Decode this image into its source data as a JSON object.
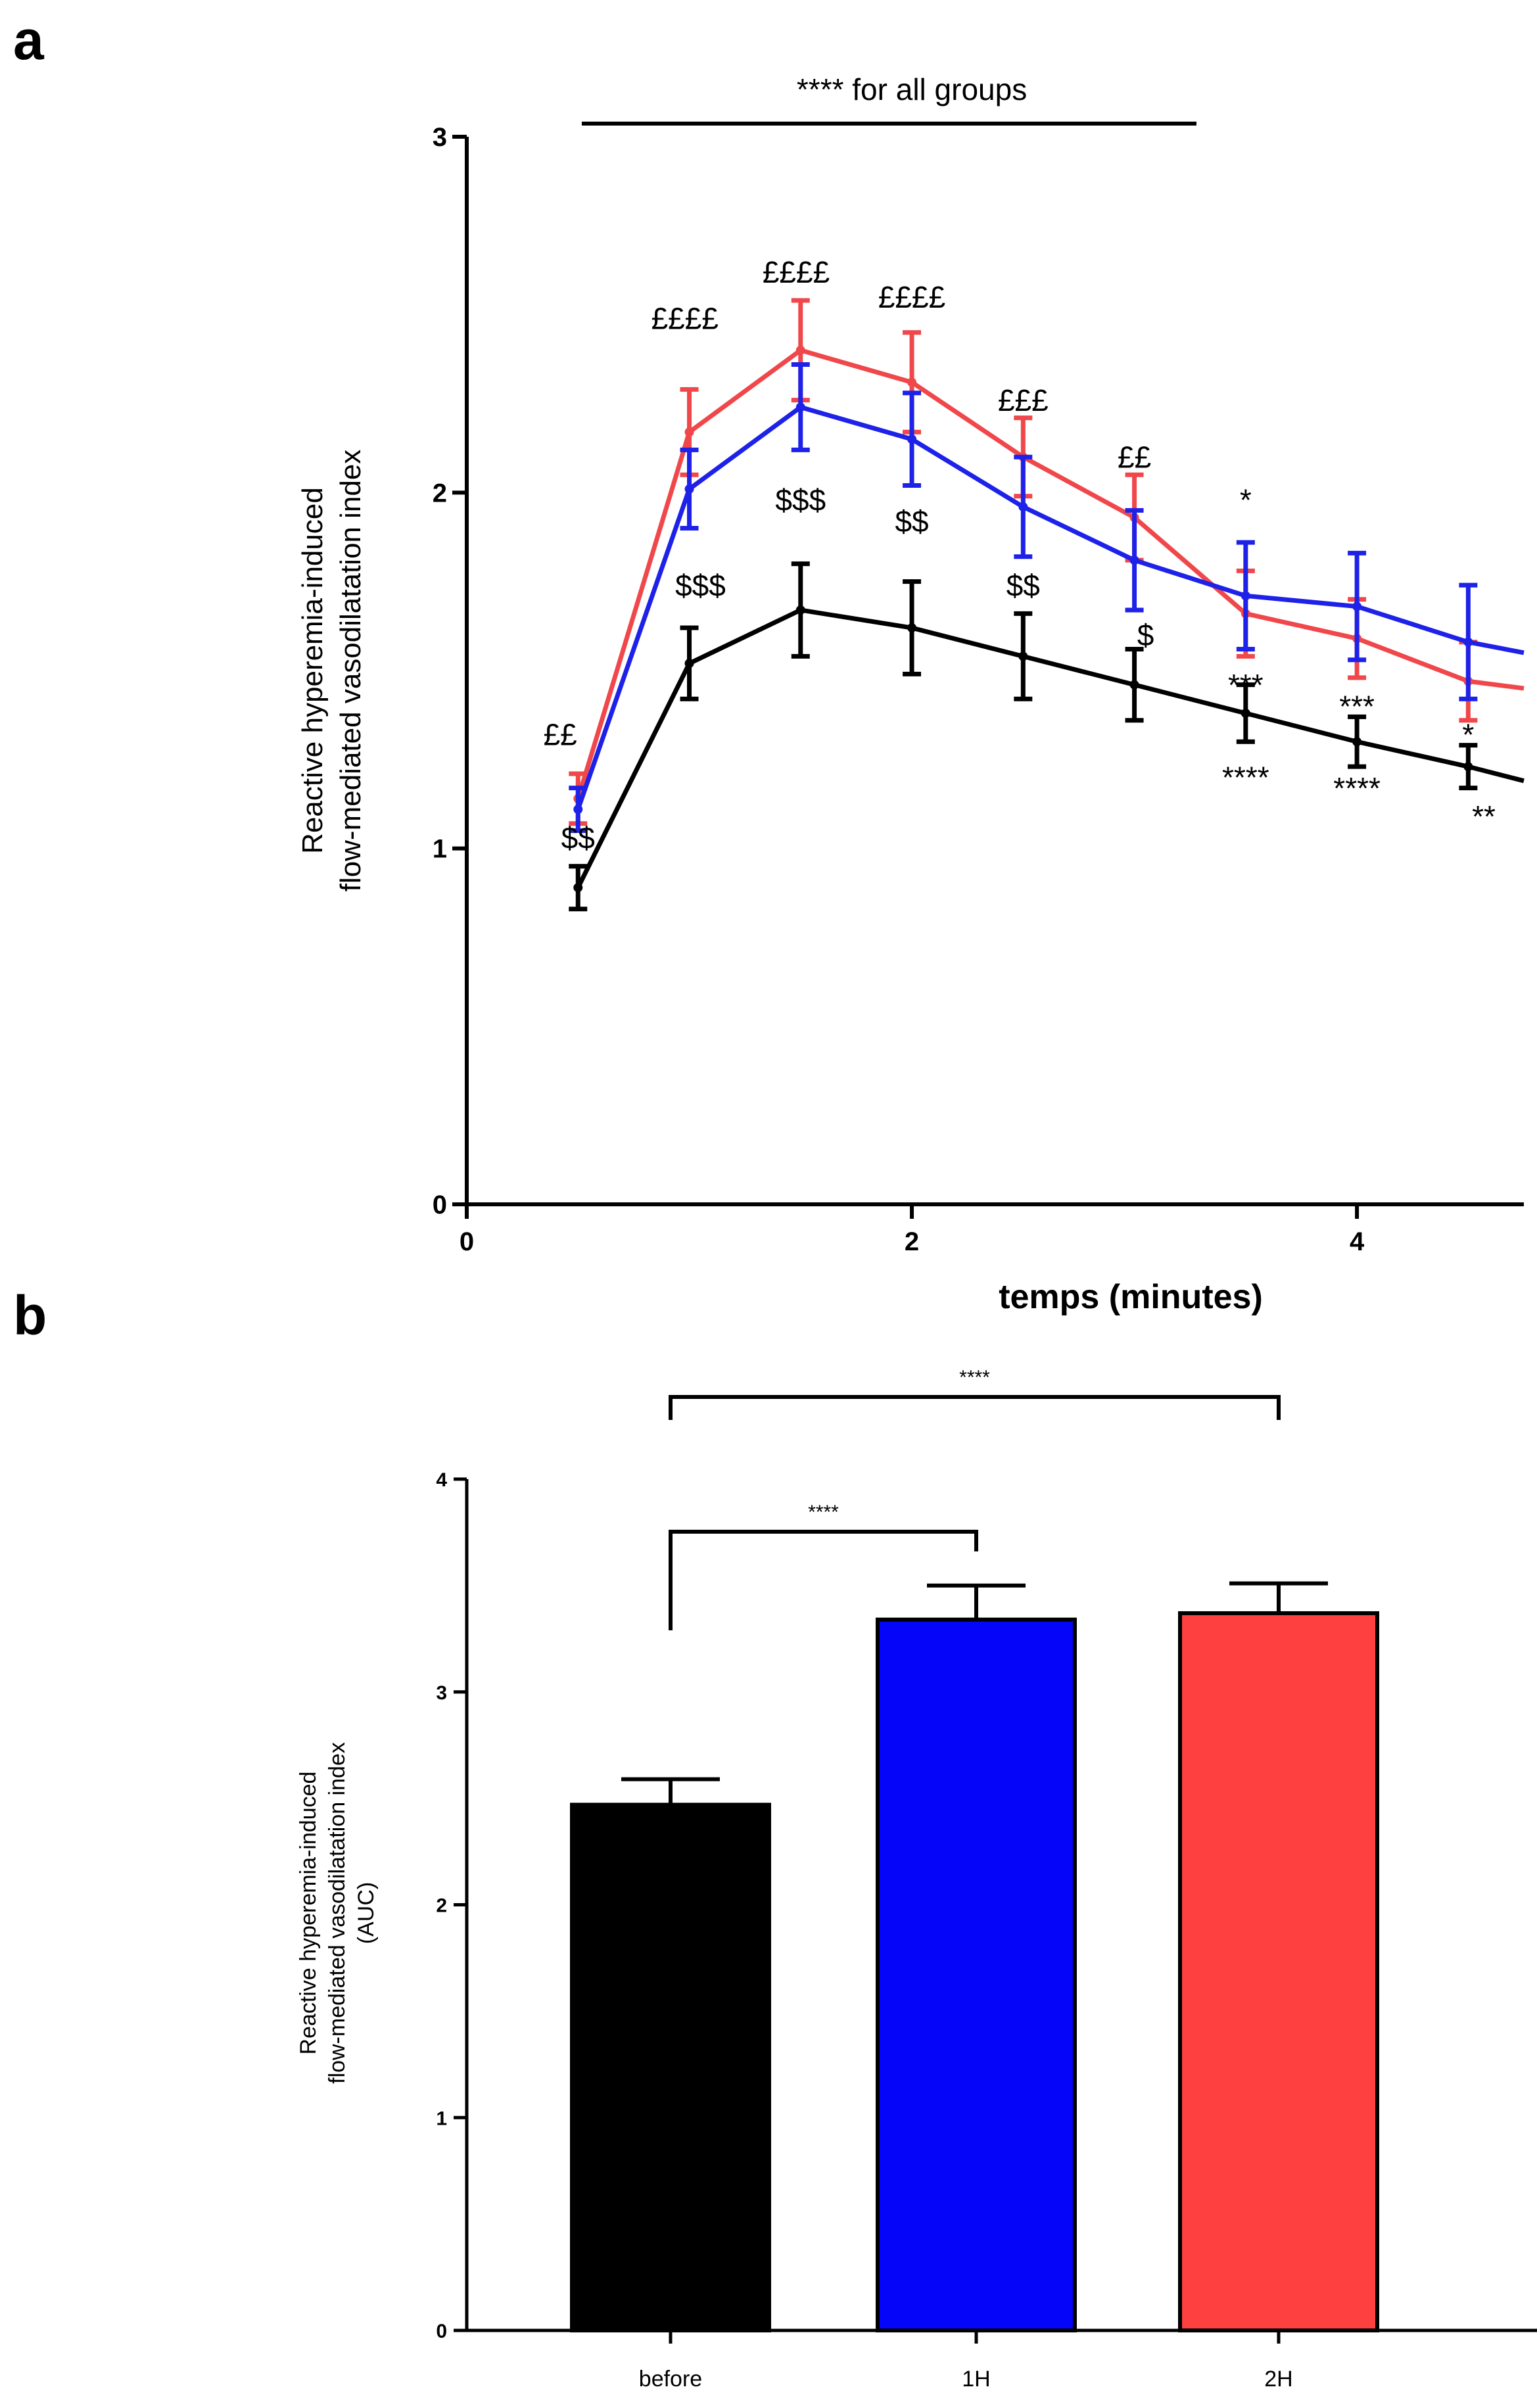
{
  "chart_data": [
    {
      "panel": "a",
      "type": "line",
      "xlabel": "temps (minutes)",
      "ylabel_lines": [
        "Reactive hyperemia-induced",
        "flow-mediated vasodilatation index"
      ],
      "xlim": [
        0,
        4.75
      ],
      "ylim": [
        0,
        3
      ],
      "xticks": [
        0,
        2,
        4
      ],
      "yticks": [
        0,
        1,
        2,
        3
      ],
      "x": [
        0.5,
        1.0,
        1.5,
        2.0,
        2.5,
        3.0,
        3.5,
        4.0,
        4.5,
        4.75
      ],
      "series": [
        {
          "color": "#000000",
          "values": [
            0.89,
            1.52,
            1.67,
            1.62,
            1.54,
            1.46,
            1.38,
            1.3,
            1.23,
            1.19
          ],
          "errors": [
            0.06,
            0.1,
            0.13,
            0.13,
            0.12,
            0.1,
            0.08,
            0.07,
            0.06,
            null
          ]
        },
        {
          "color": "#f0474b",
          "values": [
            1.14,
            2.17,
            2.4,
            2.31,
            2.1,
            1.93,
            1.66,
            1.59,
            1.47,
            1.45
          ],
          "errors": [
            0.07,
            0.12,
            0.14,
            0.14,
            0.11,
            0.12,
            0.12,
            0.11,
            0.11,
            null
          ]
        },
        {
          "color": "#1e22e8",
          "values": [
            1.11,
            2.01,
            2.24,
            2.15,
            1.96,
            1.81,
            1.71,
            1.68,
            1.58,
            1.55
          ],
          "errors": [
            0.06,
            0.11,
            0.12,
            0.13,
            0.14,
            0.14,
            0.15,
            0.15,
            0.16,
            null
          ]
        }
      ],
      "annotations": [
        {
          "text": "**** for all groups",
          "x": 2.0,
          "y": 3.1
        },
        {
          "text": "££",
          "x": 0.42,
          "y": 1.29
        },
        {
          "text": "££££",
          "x": 0.98,
          "y": 2.46
        },
        {
          "text": "££££",
          "x": 1.48,
          "y": 2.59
        },
        {
          "text": "££££",
          "x": 2.0,
          "y": 2.52
        },
        {
          "text": "£££",
          "x": 2.5,
          "y": 2.23
        },
        {
          "text": "££",
          "x": 3.0,
          "y": 2.07
        },
        {
          "text": "$$",
          "x": 0.5,
          "y": 1.0
        },
        {
          "text": "$$$",
          "x": 1.05,
          "y": 1.71
        },
        {
          "text": "$$$",
          "x": 1.5,
          "y": 1.95
        },
        {
          "text": "$$",
          "x": 2.0,
          "y": 1.89
        },
        {
          "text": "$$",
          "x": 2.5,
          "y": 1.71
        },
        {
          "text": "$",
          "x": 3.05,
          "y": 1.57
        },
        {
          "text": "*",
          "x": 3.5,
          "y": 1.95
        },
        {
          "text": "***",
          "x": 3.5,
          "y": 1.43
        },
        {
          "text": "****",
          "x": 3.5,
          "y": 1.17
        },
        {
          "text": "***",
          "x": 4.0,
          "y": 1.37
        },
        {
          "text": "****",
          "x": 4.0,
          "y": 1.14
        },
        {
          "text": "*",
          "x": 4.5,
          "y": 1.29
        },
        {
          "text": "**",
          "x": 4.57,
          "y": 1.06
        }
      ]
    },
    {
      "panel": "b",
      "type": "bar",
      "categories": [
        "before",
        "1H",
        "2H"
      ],
      "values": [
        2.47,
        3.34,
        3.37
      ],
      "errors": [
        0.12,
        0.16,
        0.14
      ],
      "colors": [
        "#000000",
        "#0505fa",
        "#ff4040"
      ],
      "ylabel_lines": [
        "Reactive hyperemia-induced",
        "flow-mediated vasodilatation index",
        "(AUC)"
      ],
      "ylim": [
        0,
        4
      ],
      "yticks": [
        0,
        1,
        2,
        3,
        4
      ],
      "significance": [
        {
          "from": "before",
          "to": "1H",
          "label": "****"
        },
        {
          "from": "before",
          "to": "2H",
          "label": "****"
        }
      ]
    }
  ],
  "panel_labels": [
    "a",
    "b"
  ]
}
